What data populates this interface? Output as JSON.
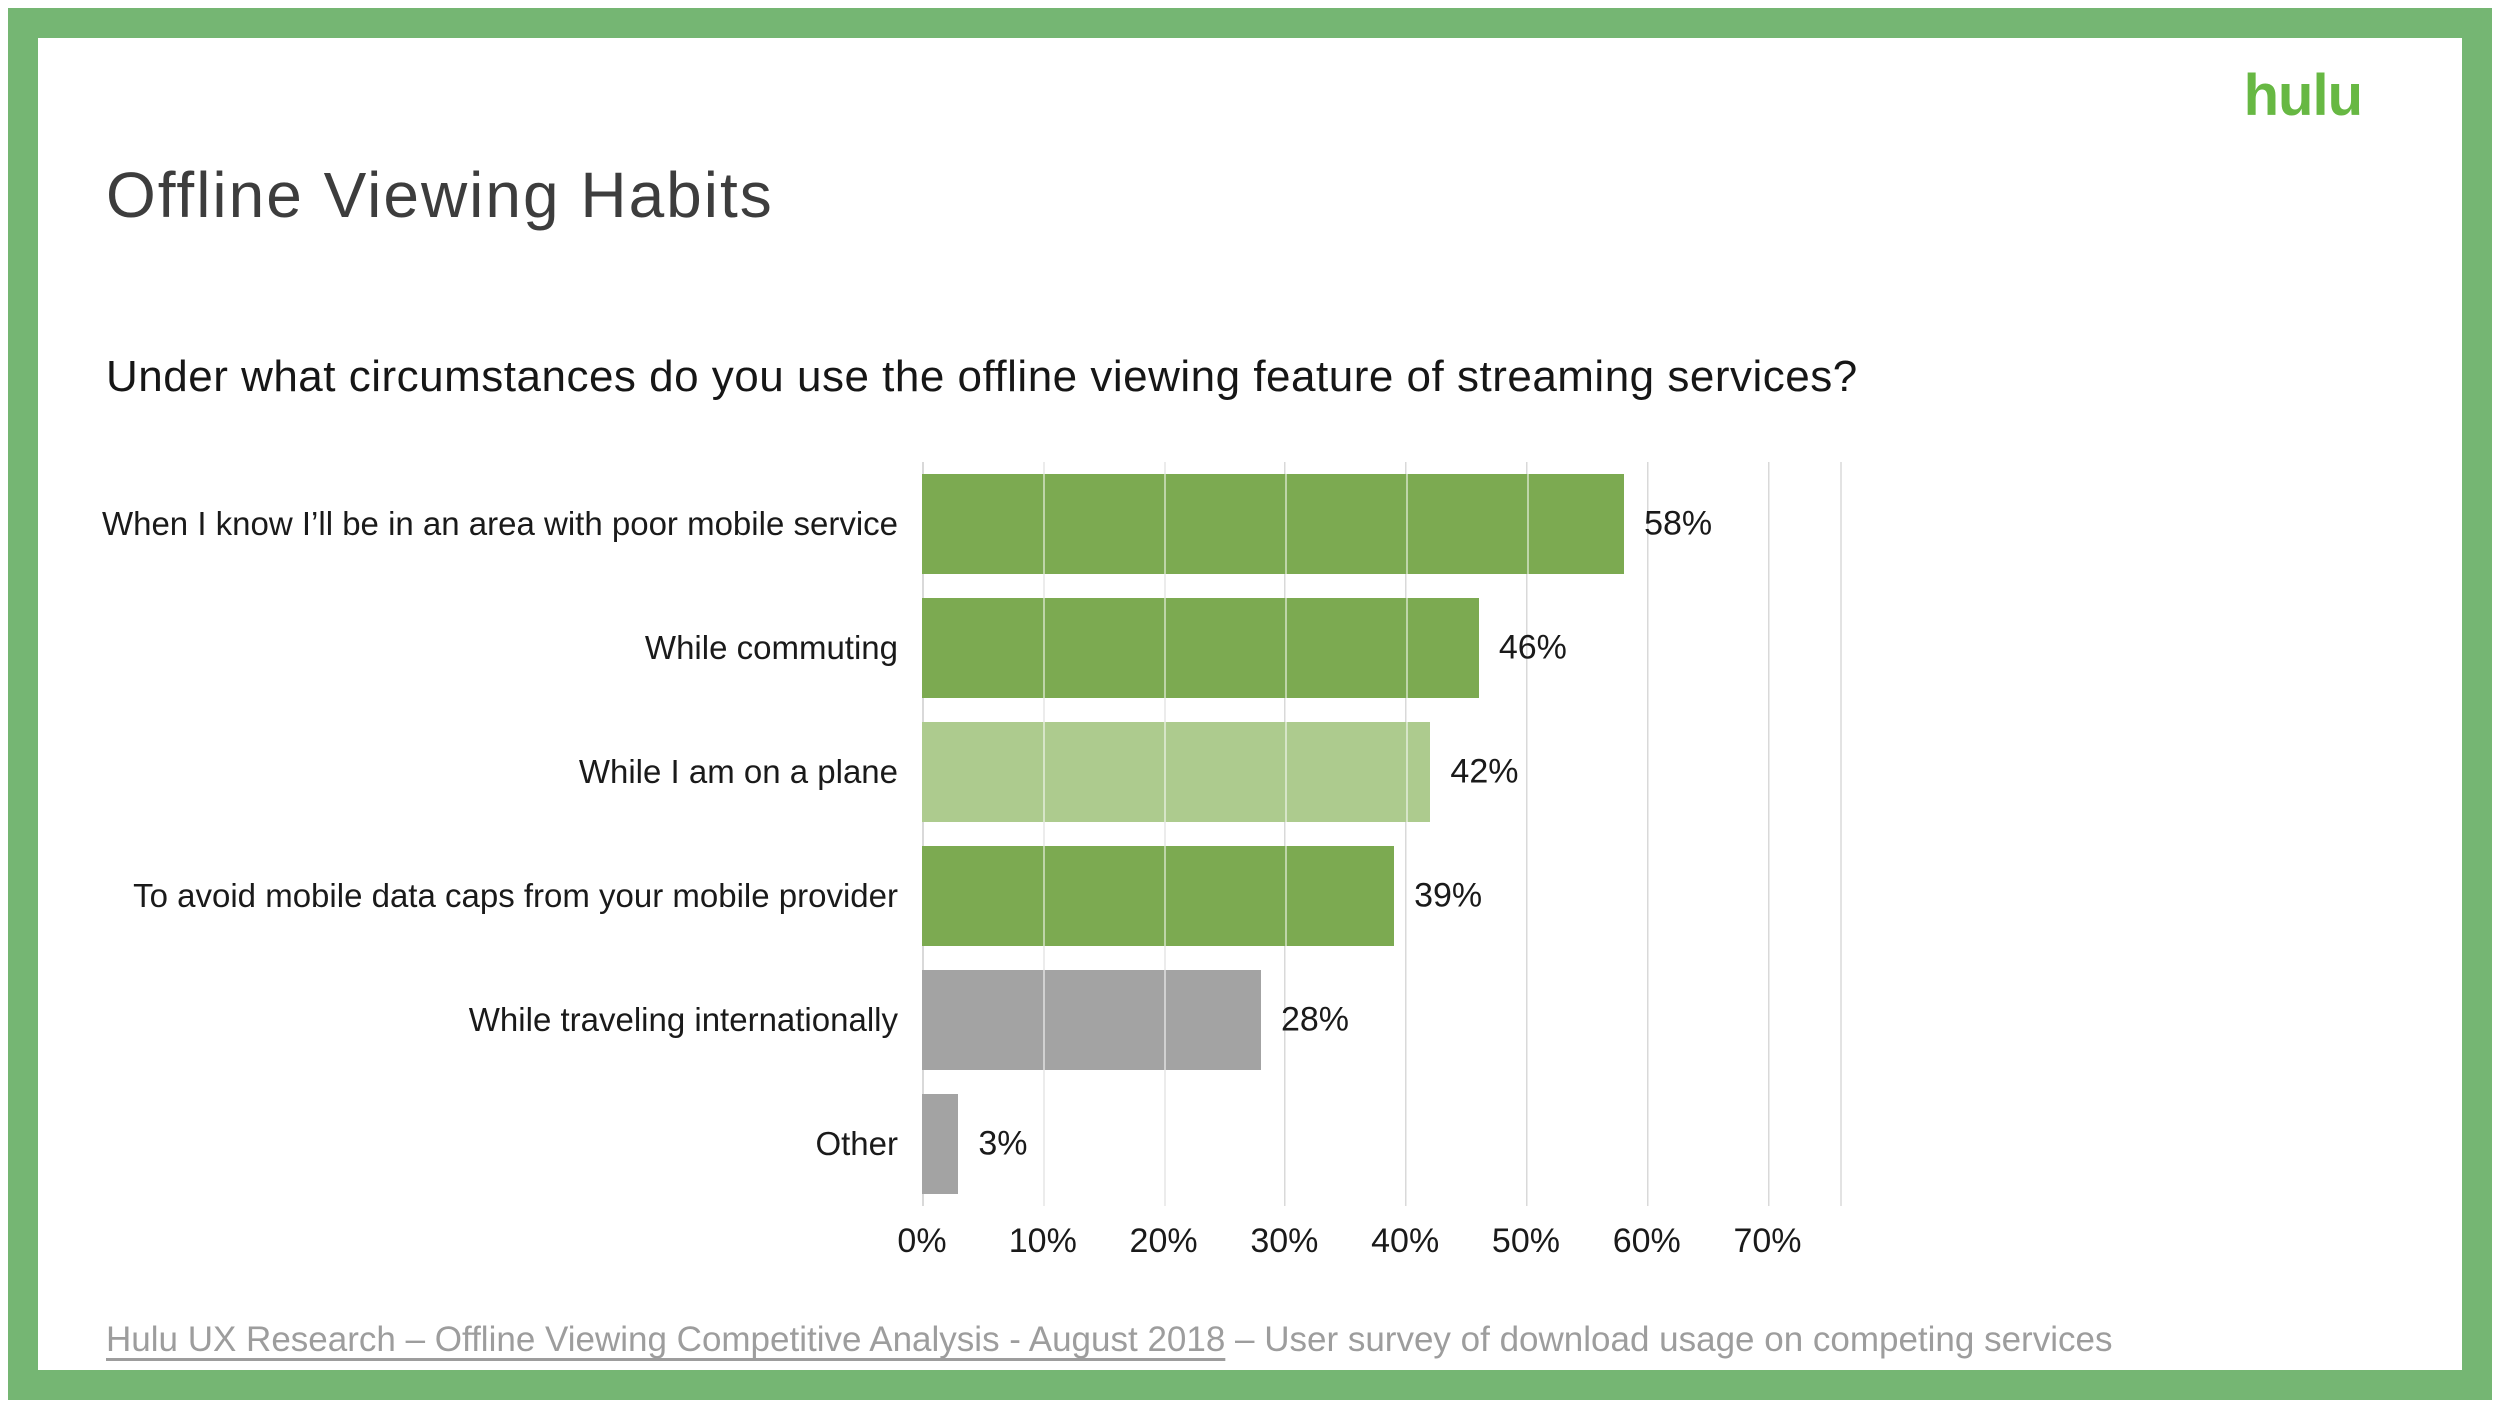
{
  "slide": {
    "logo_text": "hulu",
    "title": "Offline Viewing Habits",
    "footer_link": "Hulu UX Research – Offline Viewing Competitive Analysis - August 2018",
    "footer_rest": " – User survey of download usage on competing services"
  },
  "colors": {
    "frame_green": "#75b673",
    "logo_green": "#67b843",
    "bar_green": "#7caa51",
    "bar_light_green": "#adcb8e",
    "bar_gray": "#a3a3a3",
    "gridline": "#d9d9d9",
    "footer_text": "#9d9d9d"
  },
  "chart_data": {
    "type": "bar",
    "orientation": "horizontal",
    "title": "Under what circumstances do you use the offline viewing feature of streaming services?",
    "xlabel": "",
    "ylabel": "",
    "categories": [
      "When I know I’ll be in an area with poor mobile service",
      "While commuting",
      "While I am on a plane",
      "To avoid mobile data caps from your mobile provider",
      "While traveling internationally",
      "Other"
    ],
    "values": [
      58,
      46,
      42,
      39,
      28,
      3
    ],
    "value_labels": [
      "58%",
      "46%",
      "42%",
      "39%",
      "28%",
      "3%"
    ],
    "bar_colors": [
      "#7caa51",
      "#7caa51",
      "#adcb8e",
      "#7caa51",
      "#a3a3a3",
      "#a3a3a3"
    ],
    "x_tick_values": [
      0,
      10,
      20,
      30,
      40,
      50,
      60,
      70
    ],
    "x_tick_labels": [
      "0%",
      "10%",
      "20%",
      "30%",
      "40%",
      "50%",
      "60%",
      "70%"
    ],
    "xlim": [
      0,
      76
    ],
    "grid": "vertical",
    "legend": "none"
  }
}
